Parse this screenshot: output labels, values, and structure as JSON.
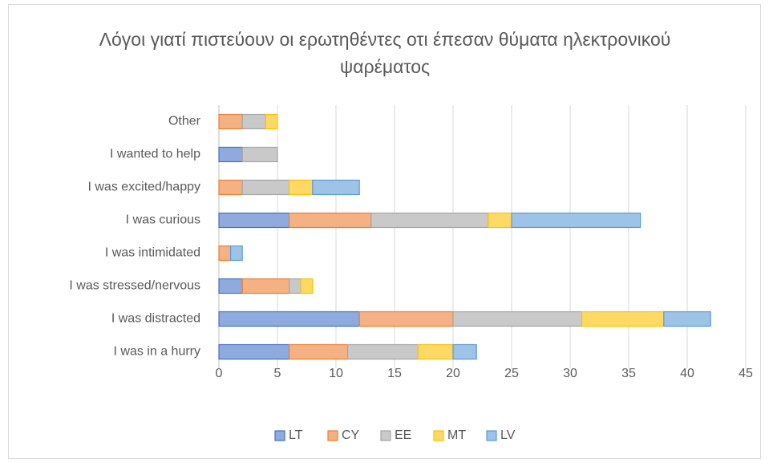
{
  "chart_data": {
    "type": "stacked-barh",
    "title": "Λόγοι γιατί πιστεύουν οι ερωτηθέντες οτι έπεσαν θύματα ηλεκτρονικού ψαρέματος",
    "categories": [
      "I was in a hurry",
      "I was distracted",
      "I was stressed/nervous",
      "I was intimidated",
      "I was curious",
      "I was excited/happy",
      "I wanted to help",
      "Other"
    ],
    "series": [
      {
        "name": "LT",
        "color": "#8faadc",
        "edgecolor": "#4472c4",
        "values": [
          6,
          12,
          2,
          0,
          6,
          0,
          2,
          0
        ]
      },
      {
        "name": "CY",
        "color": "#f4b183",
        "edgecolor": "#ed7d31",
        "values": [
          5,
          8,
          4,
          1,
          7,
          2,
          0,
          2
        ]
      },
      {
        "name": "EE",
        "color": "#c9c9c9",
        "edgecolor": "#a5a5a5",
        "values": [
          6,
          11,
          1,
          0,
          10,
          4,
          3,
          2
        ]
      },
      {
        "name": "MT",
        "color": "#ffd966",
        "edgecolor": "#ffc000",
        "values": [
          3,
          7,
          1,
          0,
          2,
          2,
          0,
          1
        ]
      },
      {
        "name": "LV",
        "color": "#9dc3e6",
        "edgecolor": "#5b9bd5",
        "values": [
          2,
          4,
          0,
          1,
          11,
          4,
          0,
          0
        ]
      }
    ],
    "xlim": [
      0,
      45
    ],
    "xticks": [
      0,
      5,
      10,
      15,
      20,
      25,
      30,
      35,
      40,
      45
    ],
    "grid": true,
    "legend": "bottom"
  }
}
